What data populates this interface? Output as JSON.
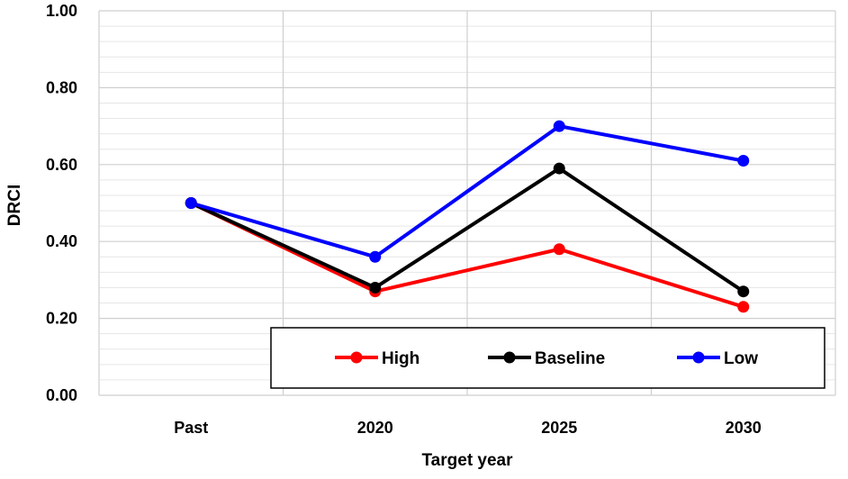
{
  "chart_data": {
    "type": "line",
    "title": "",
    "xlabel": "Target year",
    "ylabel": "DRCI",
    "categories": [
      "Past",
      "2020",
      "2025",
      "2030"
    ],
    "yticks": [
      "0.00",
      "0.20",
      "0.40",
      "0.60",
      "0.80",
      "1.00"
    ],
    "ylim": [
      0,
      1
    ],
    "grid": true,
    "legend_position": "bottom-right",
    "series": [
      {
        "name": "High",
        "color": "#ff0000",
        "values": [
          0.5,
          0.27,
          0.38,
          0.23
        ]
      },
      {
        "name": "Baseline",
        "color": "#000000",
        "values": [
          0.5,
          0.28,
          0.59,
          0.27
        ]
      },
      {
        "name": "Low",
        "color": "#0000ff",
        "values": [
          0.5,
          0.36,
          0.7,
          0.61
        ]
      }
    ]
  }
}
